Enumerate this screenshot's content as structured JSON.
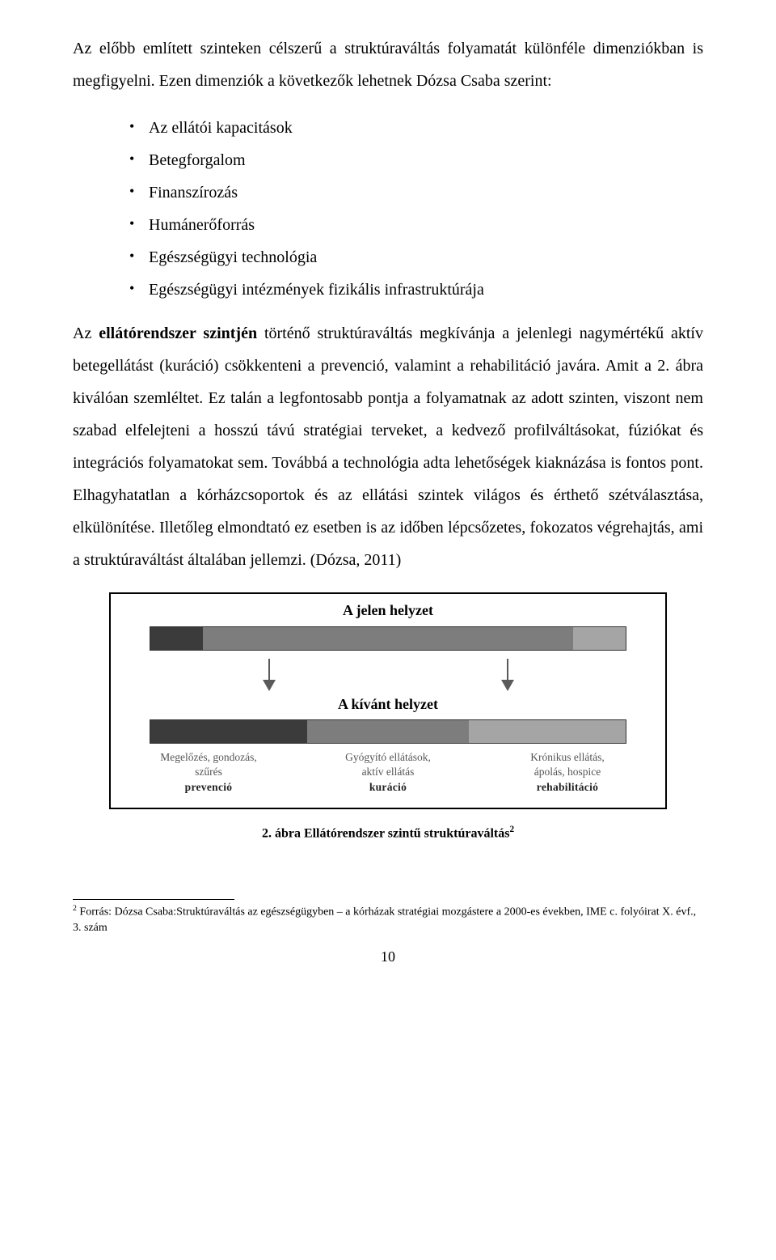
{
  "para1_a": "Az előbb említett szinteken célszerű a struktúraváltás folyamatát különféle dimenziókban is megfigyelni. Ezen dimenziók a következők lehetnek Dózsa Csaba szerint:",
  "bullets": [
    "Az ellátói kapacitások",
    "Betegforgalom",
    "Finanszírozás",
    "Humánerőforrás",
    "Egészségügyi technológia",
    "Egészségügyi intézmények fizikális infrastruktúrája"
  ],
  "para2_pre": "Az ",
  "para2_bold": "ellátórendszer szintjén",
  "para2_post": " történő struktúraváltás megkívánja a jelenlegi nagymértékű aktív betegellátást (kuráció) csökkenteni a prevenció, valamint a rehabilitáció javára. Amit a 2. ábra kiválóan szemléltet. Ez talán a legfontosabb pontja a folyamatnak az adott szinten, viszont nem szabad elfelejteni a hosszú távú stratégiai terveket, a kedvező profilváltásokat, fúziókat és integrációs folyamatokat sem. Továbbá a technológia adta lehetőségek kiaknázása is fontos pont. Elhagyhatatlan a kórházcsoportok és az ellátási szintek világos és érthető szétválasztása, elkülönítése. Illetőleg elmondtató ez esetben is az időben lépcsőzetes, fokozatos végrehajtás, ami a struktúraváltást általában jellemzi. (Dózsa, 2011)",
  "figure": {
    "type": "infographic",
    "title_top": "A jelen helyzet",
    "title_mid": "A kívánt helyzet",
    "bar_top": {
      "segments": [
        {
          "width_pct": 11,
          "color": "#3b3b3b"
        },
        {
          "width_pct": 78,
          "color": "#7d7d7d"
        },
        {
          "width_pct": 11,
          "color": "#a5a5a5"
        }
      ]
    },
    "bar_bottom": {
      "segments": [
        {
          "width_pct": 33,
          "color": "#3b3b3b"
        },
        {
          "width_pct": 34,
          "color": "#7d7d7d"
        },
        {
          "width_pct": 33,
          "color": "#a5a5a5"
        }
      ]
    },
    "arrow_color": "#5a5a5a",
    "categories": [
      {
        "line1": "Megelőzés, gondozás,",
        "line2": "szűrés",
        "bold": "prevenció"
      },
      {
        "line1": "Gyógyító ellátások,",
        "line2": "aktív ellátás",
        "bold": "kuráció"
      },
      {
        "line1": "Krónikus ellátás,",
        "line2": "ápolás, hospice",
        "bold": "rehabilitáció"
      }
    ],
    "caption": "2. ábra Ellátórendszer szintű struktúraváltás",
    "caption_sup": "2",
    "border_color": "#000000",
    "background": "#ffffff"
  },
  "footnote": {
    "marker": "2",
    "text": " Forrás: Dózsa Csaba:Struktúraváltás az egészségügyben – a kórházak stratégiai mozgástere a 2000-es években, IME c. folyóirat X. évf., 3. szám"
  },
  "page_number": "10"
}
